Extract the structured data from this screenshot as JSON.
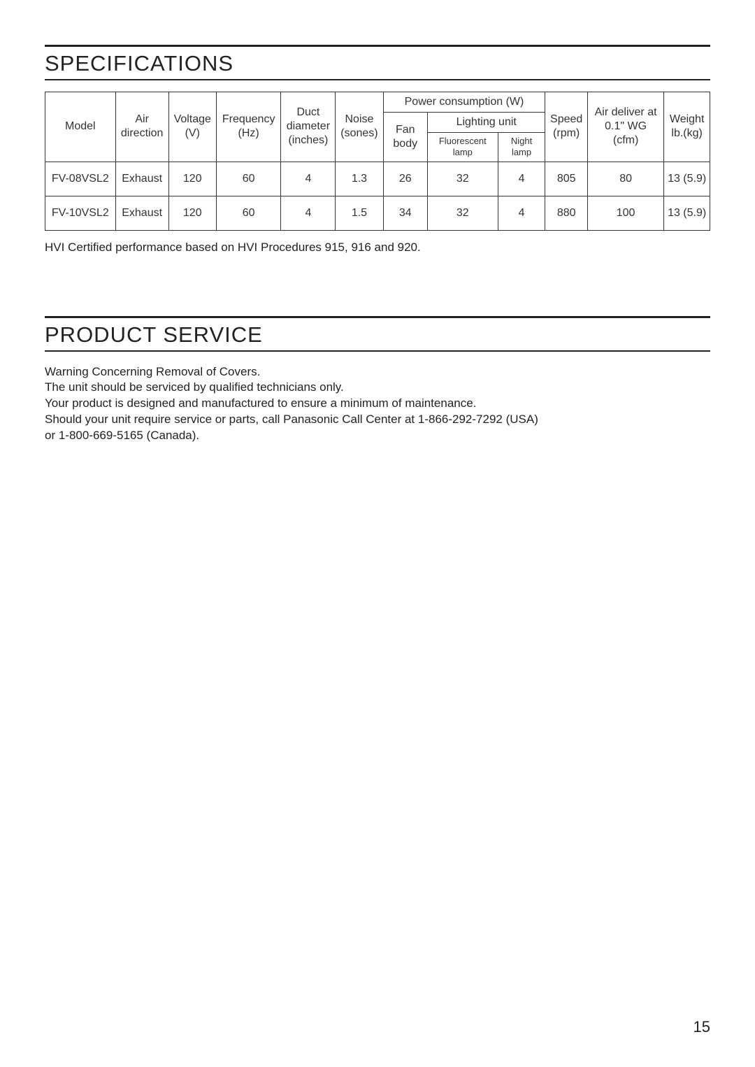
{
  "specifications": {
    "title": "SPECIFICATIONS",
    "headers": {
      "model": "Model",
      "air_direction": "Air direction",
      "voltage": "Voltage (V)",
      "frequency": "Frequency (Hz)",
      "duct": "Duct diameter (inches)",
      "noise": "Noise (sones)",
      "power_group": "Power consumption (W)",
      "fan_body": "Fan body",
      "lighting_unit": "Lighting unit",
      "fluorescent": "Fluorescent lamp",
      "night_lamp": "Night lamp",
      "speed": "Speed (rpm)",
      "air_deliver": "Air deliver at 0.1\" WG (cfm)",
      "weight": "Weight lb.(kg)"
    },
    "rows": [
      {
        "model": "FV-08VSL2",
        "air": "Exhaust",
        "v": "120",
        "hz": "60",
        "duct": "4",
        "noise": "1.3",
        "fan": "26",
        "fl": "32",
        "nl": "4",
        "rpm": "805",
        "cfm": "80",
        "wt": "13 (5.9)"
      },
      {
        "model": "FV-10VSL2",
        "air": "Exhaust",
        "v": "120",
        "hz": "60",
        "duct": "4",
        "noise": "1.5",
        "fan": "34",
        "fl": "32",
        "nl": "4",
        "rpm": "880",
        "cfm": "100",
        "wt": "13 (5.9)"
      }
    ],
    "note": "HVI Certified performance based on HVI Procedures 915, 916 and 920."
  },
  "service": {
    "title": "PRODUCT SERVICE",
    "l1": "Warning Concerning Removal of Covers.",
    "l2": "The unit should be serviced by qualified technicians only.",
    "l3": "Your product is designed and manufactured to ensure a minimum of maintenance.",
    "l4": "Should your unit require service or parts, call Panasonic Call Center at 1-866-292-7292 (USA)",
    "l5": "or 1-800-669-5165 (Canada)."
  },
  "page_number": "15"
}
